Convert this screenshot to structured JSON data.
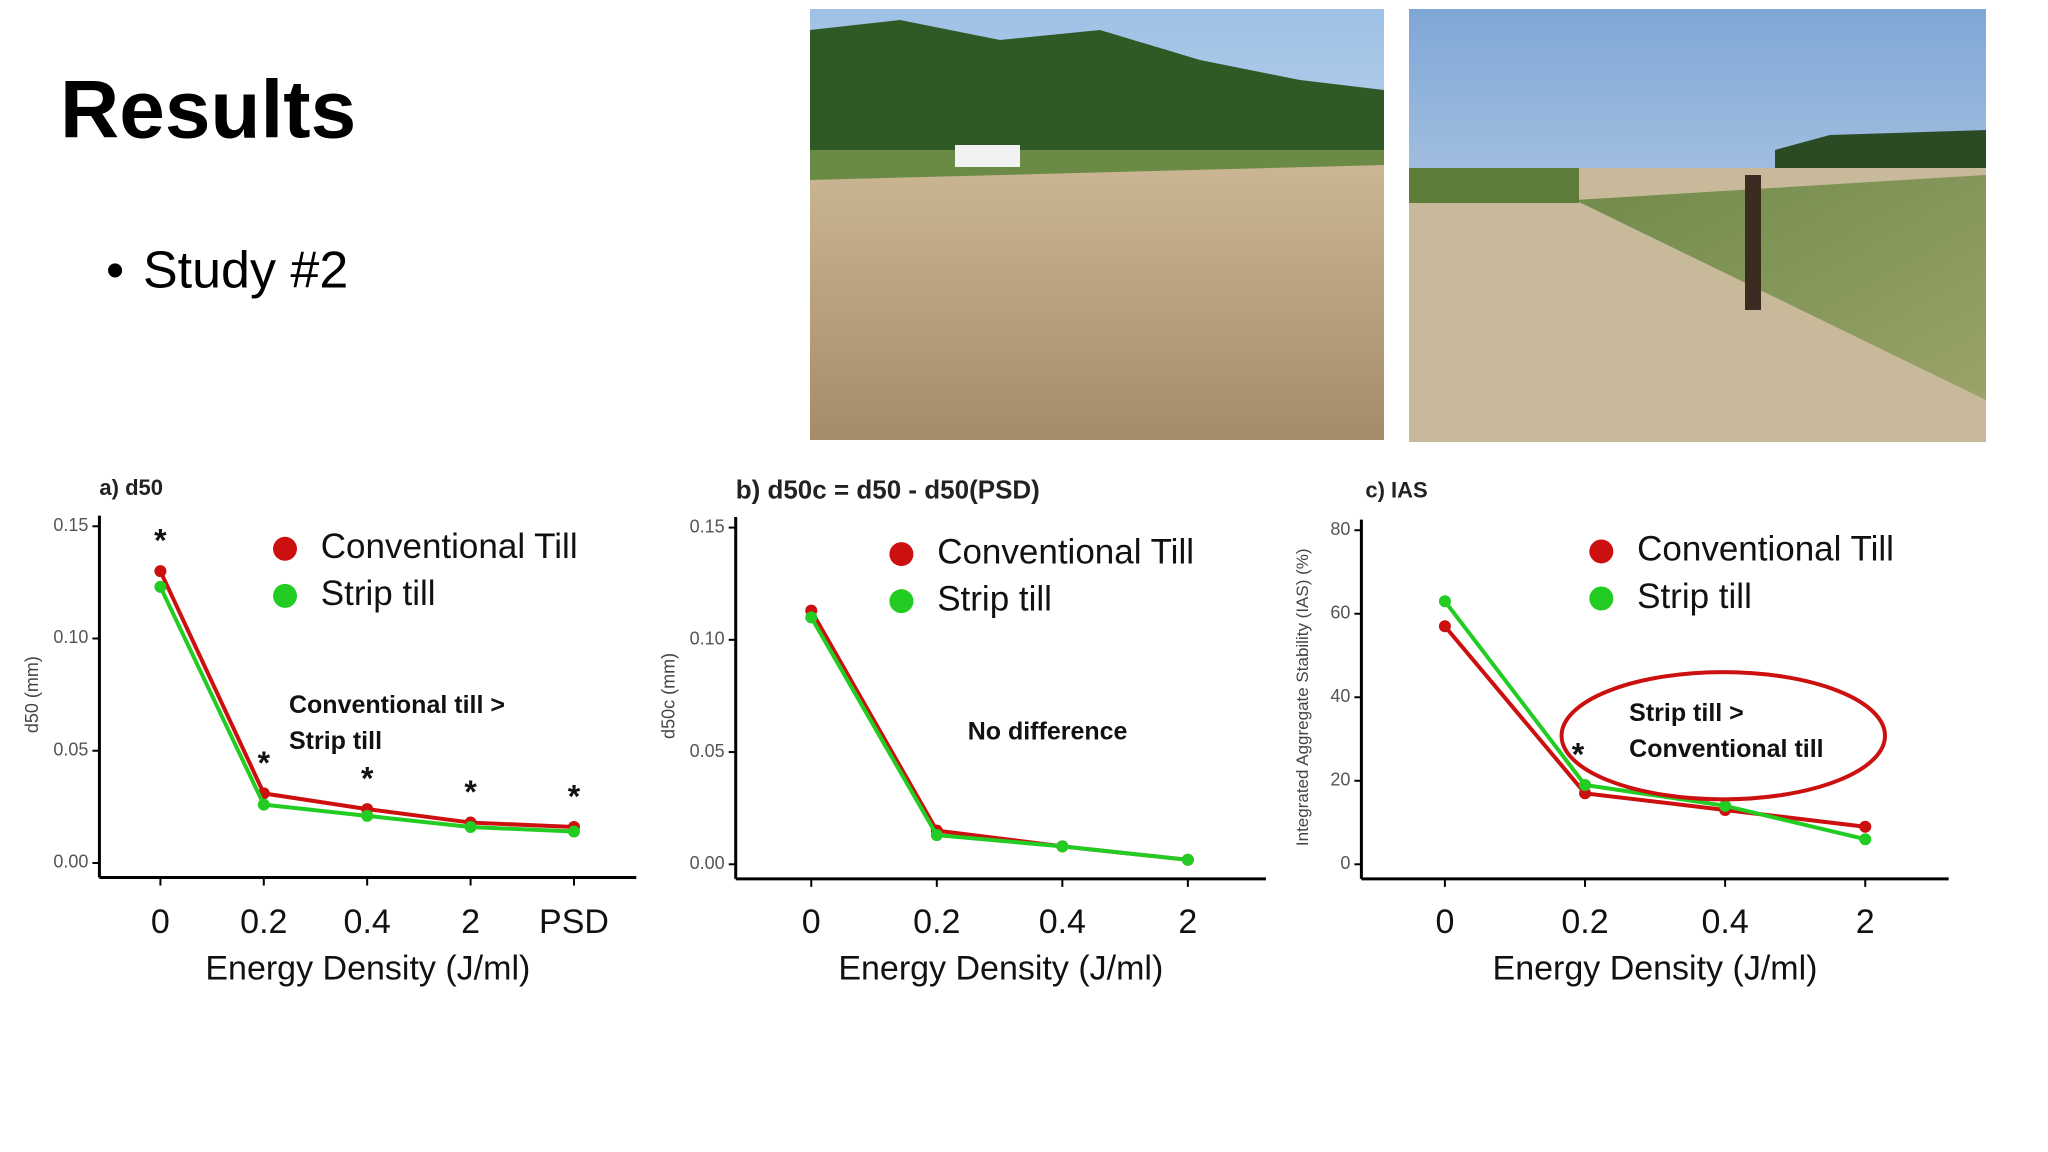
{
  "title": "Results",
  "bullets": [
    "Study #2"
  ],
  "chart_data": [
    {
      "type": "line",
      "title": "a) d50",
      "ylabel": "d50 (mm)",
      "xlabel": "Energy Density (J/ml)",
      "categories": [
        "0",
        "0.2",
        "0.4",
        "2",
        "PSD"
      ],
      "series": [
        {
          "name": "Conventional Till",
          "color": "#cc1010",
          "values": [
            0.13,
            0.031,
            0.024,
            0.018,
            0.016
          ]
        },
        {
          "name": "Strip till",
          "color": "#22cc22",
          "values": [
            0.123,
            0.026,
            0.021,
            0.016,
            0.014
          ]
        }
      ],
      "significance": [
        "*",
        "*",
        "*",
        "*",
        "*"
      ],
      "annotation": [
        "Conventional till >",
        "Strip till"
      ],
      "ylim": [
        0,
        0.15
      ],
      "yticks": [
        {
          "value": 0,
          "label": "0.00"
        },
        {
          "value": 0.05,
          "label": "0.05"
        },
        {
          "value": 0.1,
          "label": "0.10"
        },
        {
          "value": 0.15,
          "label": "0.15"
        }
      ]
    },
    {
      "type": "line",
      "title": "b) d50c = d50 - d50(PSD)",
      "ylabel": "d50c (mm)",
      "xlabel": "Energy Density (J/ml)",
      "categories": [
        "0",
        "0.2",
        "0.4",
        "2"
      ],
      "series": [
        {
          "name": "Conventional Till",
          "color": "#cc1010",
          "values": [
            0.113,
            0.015,
            0.008,
            0.002
          ]
        },
        {
          "name": "Strip till",
          "color": "#22cc22",
          "values": [
            0.11,
            0.013,
            0.008,
            0.002
          ]
        }
      ],
      "annotation": [
        "No difference"
      ],
      "ylim": [
        0,
        0.15
      ],
      "yticks": [
        {
          "value": 0,
          "label": "0.00"
        },
        {
          "value": 0.05,
          "label": "0.05"
        },
        {
          "value": 0.1,
          "label": "0.10"
        },
        {
          "value": 0.15,
          "label": "0.15"
        }
      ]
    },
    {
      "type": "line",
      "title": "c) IAS",
      "ylabel": "Integrated Aggregate Stability (IAS) (%)",
      "xlabel": "Energy Density (J/ml)",
      "categories": [
        "0",
        "0.2",
        "0.4",
        "2"
      ],
      "series": [
        {
          "name": "Conventional Till",
          "color": "#cc1010",
          "values": [
            57,
            17,
            13,
            9
          ]
        },
        {
          "name": "Strip till",
          "color": "#22cc22",
          "values": [
            63,
            19,
            14,
            6
          ]
        }
      ],
      "significance": [
        null,
        "*",
        null,
        null
      ],
      "annotation": [
        "Strip till >",
        "Conventional till"
      ],
      "ylim": [
        0,
        80
      ],
      "yticks": [
        0,
        20,
        40,
        60,
        80
      ]
    }
  ]
}
